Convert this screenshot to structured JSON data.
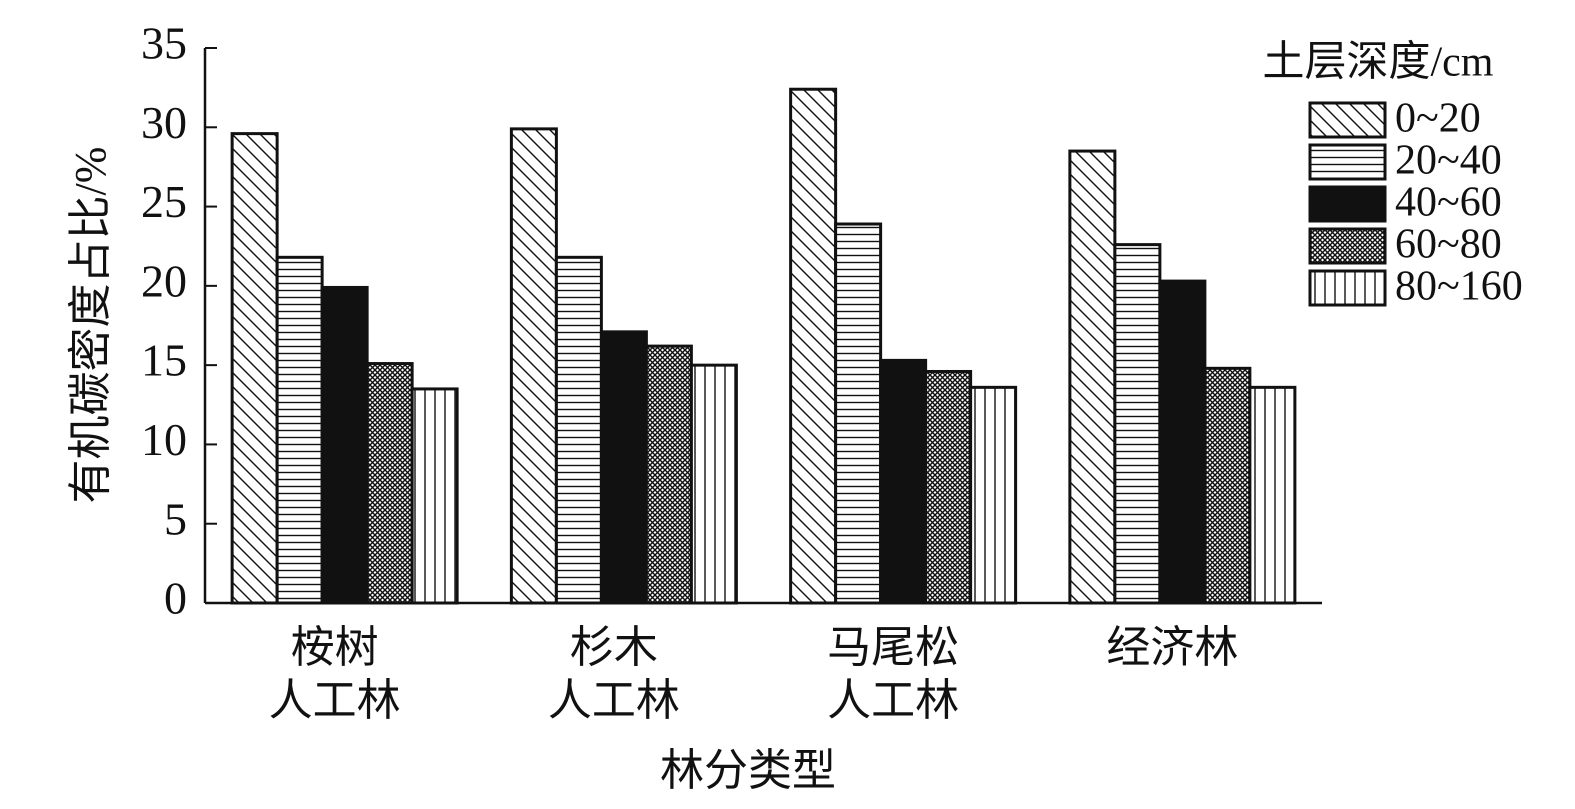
{
  "chart_data": {
    "type": "bar",
    "y_label": "有机碳密度占比/%",
    "x_label": "林分类型",
    "legend_title": "土层深度/cm",
    "legend_position": "upper right",
    "categories": [
      [
        "桉树",
        "人工林"
      ],
      [
        "杉木",
        "人工林"
      ],
      [
        "马尾松",
        "人工林"
      ],
      [
        "经济林"
      ]
    ],
    "series": [
      {
        "name": "0~20",
        "color": "#111111",
        "pattern": "diagonal",
        "values": [
          29.6,
          29.9,
          32.4,
          28.5
        ]
      },
      {
        "name": "20~40",
        "color": "#111111",
        "pattern": "horizontal",
        "values": [
          21.8,
          21.8,
          23.9,
          22.6
        ]
      },
      {
        "name": "40~60",
        "color": "#111111",
        "pattern": "solid",
        "values": [
          19.9,
          17.1,
          15.3,
          20.3
        ]
      },
      {
        "name": "60~80",
        "color": "#111111",
        "pattern": "dots",
        "values": [
          15.1,
          16.2,
          14.6,
          14.8
        ]
      },
      {
        "name": "80~160",
        "color": "#111111",
        "pattern": "vertical",
        "values": [
          13.5,
          15.0,
          13.6,
          13.6
        ]
      }
    ],
    "ylim": [
      0,
      35
    ],
    "yticks": [
      0,
      5,
      10,
      15,
      20,
      25,
      30,
      35
    ],
    "grid": false
  }
}
